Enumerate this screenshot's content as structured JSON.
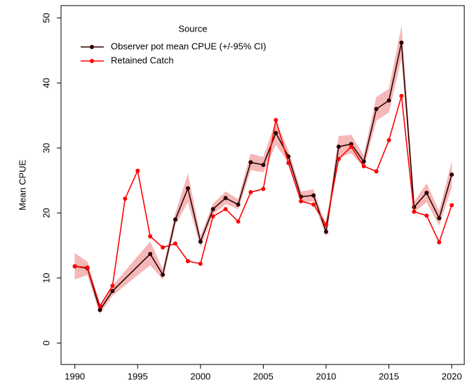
{
  "chart_data": {
    "type": "line",
    "ylabel": "Mean CPUE",
    "legend_title": "Source",
    "legend_position": "top-left",
    "xlim": [
      1988.9,
      2021
    ],
    "xticks": [
      1990,
      1995,
      2000,
      2005,
      2010,
      2015,
      2020
    ],
    "ylim": [
      -3.3,
      51.9
    ],
    "yticks": [
      0,
      10,
      20,
      30,
      40,
      50
    ],
    "band_color": "#f5b8b8",
    "series": [
      {
        "name": "Observer pot mean CPUE (+/-95% CI)",
        "color": "#2b0000",
        "x": [
          1990,
          1991,
          1992,
          1993,
          1996,
          1997,
          1998,
          1999,
          2000,
          2001,
          2002,
          2003,
          2004,
          2005,
          2006,
          2007,
          2008,
          2009,
          2010,
          2011,
          2012,
          2013,
          2014,
          2015,
          2016,
          2017,
          2018,
          2019,
          2020
        ],
        "values": [
          11.8,
          11.5,
          5.1,
          8.0,
          13.7,
          10.5,
          19.0,
          23.8,
          15.6,
          20.6,
          22.3,
          21.3,
          27.8,
          27.4,
          32.3,
          28.7,
          22.5,
          22.7,
          17.1,
          30.2,
          30.6,
          27.9,
          36.0,
          37.3,
          46.2,
          20.9,
          23.1,
          19.2,
          25.9
        ],
        "lower": [
          9.8,
          10.5,
          4.5,
          7.3,
          12.0,
          9.8,
          18.2,
          21.7,
          14.8,
          19.8,
          21.4,
          20.6,
          26.6,
          26.3,
          30.5,
          27.8,
          21.7,
          21.8,
          16.5,
          28.6,
          29.2,
          27.0,
          34.2,
          35.5,
          43.9,
          20.1,
          21.7,
          18.1,
          24.0
        ],
        "upper": [
          13.8,
          12.5,
          5.8,
          8.8,
          15.6,
          11.3,
          19.9,
          26.0,
          16.4,
          21.4,
          23.3,
          22.1,
          29.1,
          28.6,
          34.1,
          29.6,
          23.3,
          23.6,
          17.8,
          31.8,
          32.0,
          28.8,
          37.8,
          39.1,
          48.6,
          21.7,
          24.5,
          20.3,
          27.8
        ]
      },
      {
        "name": "Retained Catch",
        "color": "#ff0000",
        "x": [
          1990,
          1991,
          1992,
          1993,
          1994,
          1995,
          1996,
          1997,
          1998,
          1999,
          2000,
          2001,
          2002,
          2003,
          2004,
          2005,
          2006,
          2007,
          2008,
          2009,
          2010,
          2011,
          2012,
          2013,
          2014,
          2015,
          2016,
          2017,
          2018,
          2019,
          2020
        ],
        "values": [
          11.8,
          11.6,
          5.7,
          8.8,
          22.2,
          26.5,
          16.4,
          14.7,
          15.3,
          12.6,
          12.2,
          19.5,
          20.6,
          18.7,
          23.2,
          23.7,
          34.3,
          27.7,
          21.8,
          21.3,
          18.2,
          28.3,
          30.2,
          27.2,
          26.4,
          31.2,
          38.0,
          20.2,
          19.6,
          15.5,
          21.2
        ]
      }
    ]
  }
}
